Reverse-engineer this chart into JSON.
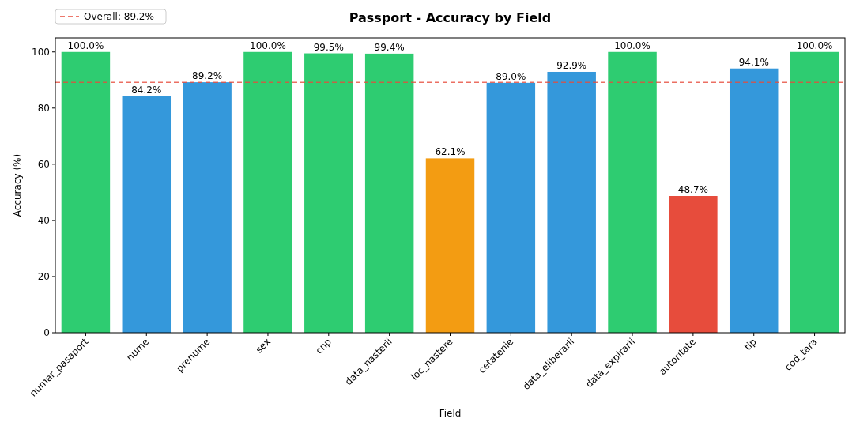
{
  "chart_data": {
    "type": "bar",
    "title": "Passport - Accuracy by Field",
    "xlabel": "Field",
    "ylabel": "Accuracy (%)",
    "categories": [
      "numar_pasaport",
      "nume",
      "prenume",
      "sex",
      "cnp",
      "data_nasterii",
      "loc_nastere",
      "cetatenie",
      "data_eliberarii",
      "data_expirarii",
      "autoritate",
      "tip",
      "cod_tara"
    ],
    "values": [
      100,
      84.2,
      89.2,
      100,
      99.5,
      99.4,
      62.1,
      89.0,
      92.9,
      100,
      48.7,
      94.1,
      100
    ],
    "colors": [
      "#2ecc71",
      "#3498db",
      "#3498db",
      "#2ecc71",
      "#2ecc71",
      "#2ecc71",
      "#f39c12",
      "#3498db",
      "#3498db",
      "#2ecc71",
      "#e74c3c",
      "#3498db",
      "#2ecc71"
    ],
    "value_labels": [
      "100.0%",
      "84.2%",
      "89.2%",
      "100.0%",
      "99.5%",
      "99.4%",
      "62.1%",
      "89.0%",
      "92.9%",
      "100.0%",
      "48.7%",
      "94.1%",
      "100.0%"
    ],
    "ylim": [
      0,
      105
    ],
    "yticks": [
      0,
      20,
      40,
      60,
      80,
      100
    ],
    "ref_lines": [
      {
        "axis": "y",
        "value": 89.2,
        "label": "Overall: 89.2%",
        "color": "#e74c3c",
        "line_style": "dashed"
      }
    ],
    "legend": "top left"
  }
}
